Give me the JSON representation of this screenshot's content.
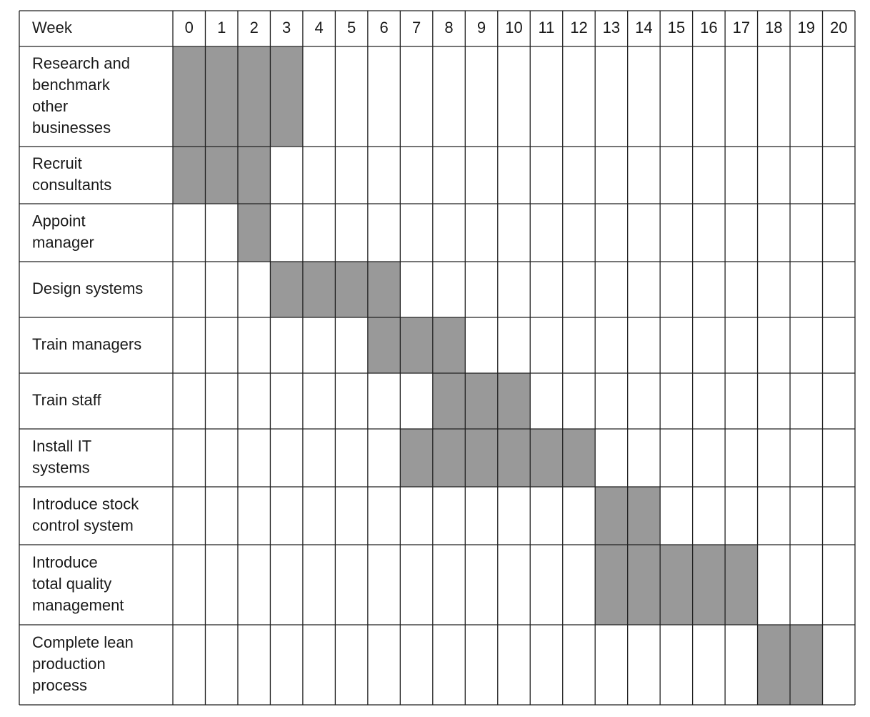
{
  "chart_data": {
    "type": "gantt",
    "x_label": "Week",
    "categories": [
      0,
      1,
      2,
      3,
      4,
      5,
      6,
      7,
      8,
      9,
      10,
      11,
      12,
      13,
      14,
      15,
      16,
      17,
      18,
      19,
      20
    ],
    "color": "#999999",
    "tasks": [
      {
        "name": [
          "Research and",
          "benchmark",
          "other",
          "businesses"
        ],
        "start": 0,
        "end": 3
      },
      {
        "name": [
          "Recruit",
          "consultants"
        ],
        "start": 0,
        "end": 2
      },
      {
        "name": [
          "Appoint",
          "manager"
        ],
        "start": 2,
        "end": 2
      },
      {
        "name": [
          "Design systems"
        ],
        "start": 3,
        "end": 6
      },
      {
        "name": [
          "Train managers"
        ],
        "start": 6,
        "end": 8
      },
      {
        "name": [
          "Train staff"
        ],
        "start": 8,
        "end": 10
      },
      {
        "name": [
          "Install IT",
          "systems"
        ],
        "start": 7,
        "end": 12
      },
      {
        "name": [
          "Introduce stock",
          "control system"
        ],
        "start": 13,
        "end": 14
      },
      {
        "name": [
          "Introduce",
          "total quality",
          "management"
        ],
        "start": 13,
        "end": 17
      },
      {
        "name": [
          "Complete lean",
          "production",
          "process"
        ],
        "start": 18,
        "end": 19
      }
    ]
  }
}
